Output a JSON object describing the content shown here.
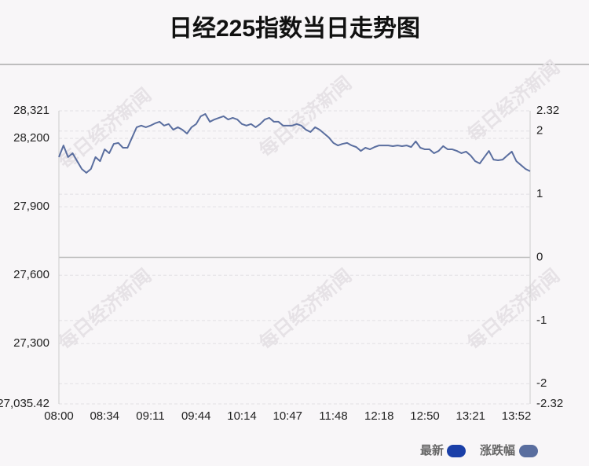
{
  "chart_data": {
    "type": "line",
    "title": "日经225指数当日走势图",
    "watermark": "每日经济新闻",
    "categories": [
      "08:00",
      null,
      null,
      null,
      null,
      null,
      null,
      null,
      null,
      null,
      "08:34",
      null,
      null,
      null,
      null,
      null,
      null,
      null,
      null,
      null,
      "09:11",
      null,
      null,
      null,
      null,
      null,
      null,
      null,
      null,
      null,
      "09:44",
      null,
      null,
      null,
      null,
      null,
      null,
      null,
      null,
      null,
      "10:14",
      null,
      null,
      null,
      null,
      null,
      null,
      null,
      null,
      null,
      "10:47",
      null,
      null,
      null,
      null,
      null,
      null,
      null,
      null,
      null,
      "11:48",
      null,
      null,
      null,
      null,
      null,
      null,
      null,
      null,
      null,
      "12:18",
      null,
      null,
      null,
      null,
      null,
      null,
      null,
      null,
      null,
      "12:50",
      null,
      null,
      null,
      null,
      null,
      null,
      null,
      null,
      null,
      "13:21",
      null,
      null,
      null,
      null,
      null,
      null,
      null,
      null,
      null,
      "13:52",
      null,
      null,
      null
    ],
    "series": [
      {
        "color": "#5a6e9f",
        "values": [
          28118,
          28169,
          28118,
          28135,
          28100,
          28066,
          28049,
          28066,
          28118,
          28100,
          28152,
          28135,
          28176,
          28180,
          28159,
          28159,
          28204,
          28249,
          28256,
          28249,
          28256,
          28266,
          28273,
          28256,
          28263,
          28238,
          28249,
          28238,
          28221,
          28249,
          28263,
          28297,
          28307,
          28273,
          28283,
          28290,
          28297,
          28283,
          28290,
          28283,
          28263,
          28256,
          28263,
          28249,
          28263,
          28283,
          28290,
          28273,
          28273,
          28256,
          28256,
          28256,
          28263,
          28256,
          28238,
          28228,
          28249,
          28238,
          28221,
          28204,
          28180,
          28169,
          28176,
          28180,
          28169,
          28162,
          28145,
          28159,
          28152,
          28162,
          28169,
          28169,
          28169,
          28166,
          28169,
          28166,
          28169,
          28162,
          28187,
          28159,
          28152,
          28152,
          28135,
          28145,
          28166,
          28152,
          28152,
          28145,
          28135,
          28142,
          28125,
          28100,
          28090,
          28118,
          28145,
          28107,
          28104,
          28107,
          28125,
          28142,
          28100,
          28083,
          28066,
          28056
        ]
      }
    ],
    "legend": [
      {
        "name": "最新",
        "color": "#1a3fa8"
      },
      {
        "name": "涨跌幅",
        "color": "#5a6e9f"
      }
    ],
    "ylim": [
      27035.42,
      28321
    ],
    "yticks": [
      {
        "value": 27035.42,
        "label": "27,035.42"
      },
      {
        "value": 27300,
        "label": "27,300"
      },
      {
        "value": 27600,
        "label": "27,600"
      },
      {
        "value": 27900,
        "label": "27,900"
      },
      {
        "value": 28200,
        "label": "28,200"
      },
      {
        "value": 28321,
        "label": "28,321"
      }
    ],
    "y2lim": [
      -2.32,
      2.32
    ],
    "y2ticks": [
      -2.32,
      -2,
      -1,
      0,
      1,
      2,
      2.32
    ],
    "grid": true
  }
}
